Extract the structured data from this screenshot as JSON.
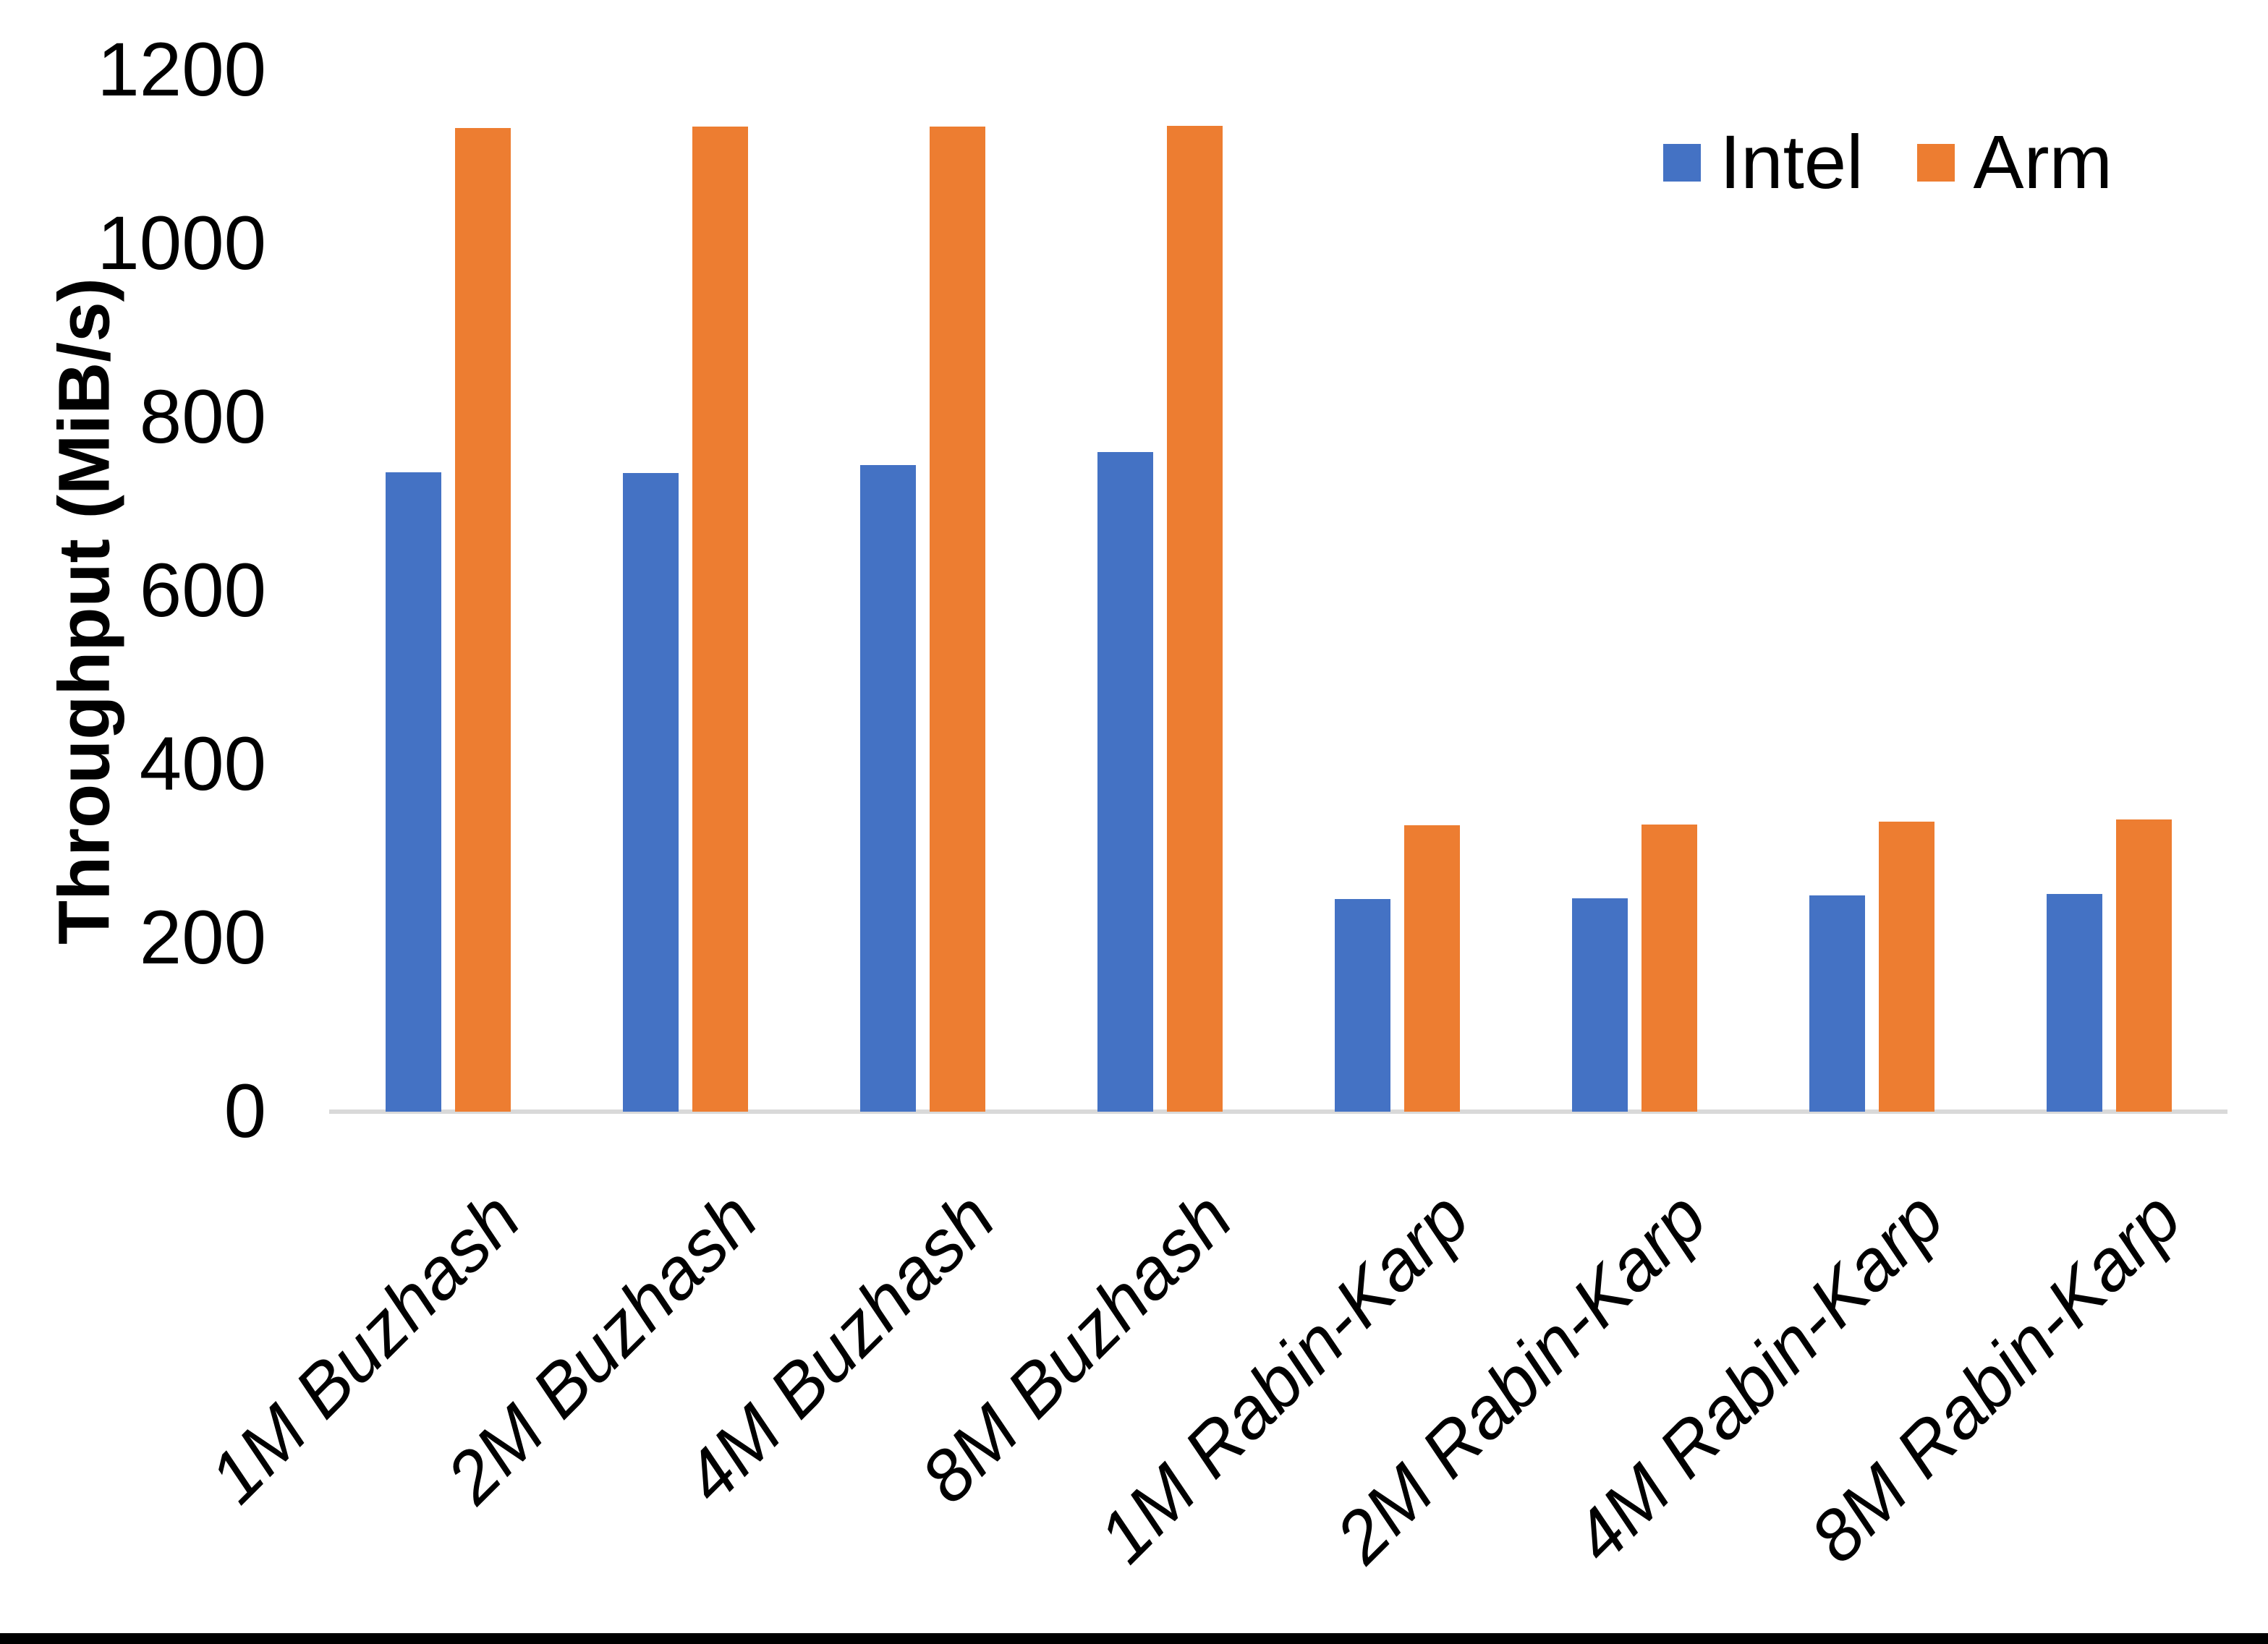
{
  "chart_data": {
    "type": "bar",
    "title": "",
    "xlabel": "",
    "ylabel": "Throughput (MiB/s)",
    "ylim": [
      0,
      1200
    ],
    "y_ticks": [
      0,
      200,
      400,
      600,
      800,
      1000,
      1200
    ],
    "grid": false,
    "legend_position": "top-right",
    "categories": [
      "1M Buzhash",
      "2M Buzhash",
      "4M Buzhash",
      "8M Buzhash",
      "1M Rabin-Karp",
      "2M Rabin-Karp",
      "4M Rabin-Karp",
      "8M Rabin-Karp"
    ],
    "series": [
      {
        "name": "Intel",
        "color": "#4472C4",
        "values": [
          737,
          736,
          745,
          760,
          245,
          246,
          249,
          251
        ]
      },
      {
        "name": "Arm",
        "color": "#ED7D31",
        "values": [
          1133,
          1135,
          1135,
          1136,
          330,
          331,
          334,
          337
        ]
      }
    ]
  },
  "colors": {
    "background": "#FFFFFF",
    "axis_line": "#D9D9D9",
    "text": "#000000",
    "bottom_border": "#000000"
  }
}
